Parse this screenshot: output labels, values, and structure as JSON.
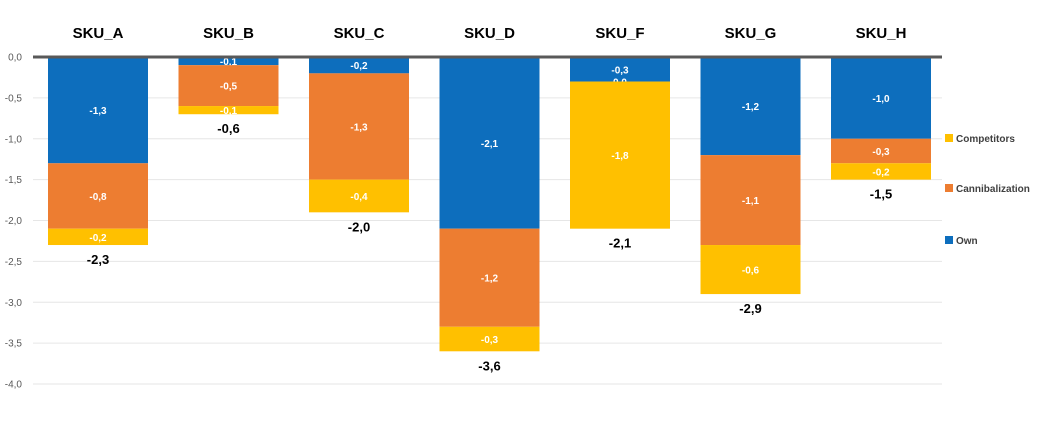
{
  "chart_data": {
    "type": "bar",
    "stacked": true,
    "categories": [
      "SKU_A",
      "SKU_B",
      "SKU_C",
      "SKU_D",
      "SKU_F",
      "SKU_G",
      "SKU_H"
    ],
    "series": [
      {
        "name": "Own",
        "color": "#0D6EBD",
        "values": [
          -1.3,
          -0.1,
          -0.2,
          -2.1,
          -0.3,
          -1.2,
          -1.0
        ],
        "labels": [
          "-1,3",
          "-0,1",
          "-0,2",
          "-2,1",
          "-0,3",
          "-1,2",
          "-1,0"
        ]
      },
      {
        "name": "Cannibalization",
        "color": "#ED7D31",
        "values": [
          -0.8,
          -0.5,
          -1.3,
          -1.2,
          0.0,
          -1.1,
          -0.3
        ],
        "labels": [
          "-0,8",
          "-0,5",
          "-1,3",
          "-1,2",
          "0,0",
          "-1,1",
          "-0,3"
        ]
      },
      {
        "name": "Competitors",
        "color": "#FFC000",
        "values": [
          -0.2,
          -0.1,
          -0.4,
          -0.3,
          -1.8,
          -0.6,
          -0.2
        ],
        "labels": [
          "-0,2",
          "-0,1",
          "-0,4",
          "-0,3",
          "-1,8",
          "-0,6",
          "-0,2"
        ]
      }
    ],
    "totals": [
      -2.3,
      -0.6,
      -2.0,
      -3.6,
      -2.1,
      -2.9,
      -1.5
    ],
    "total_labels": [
      "-2,3",
      "-0,6",
      "-2,0",
      "-3,6",
      "-2,1",
      "-2,9",
      "-1,5"
    ],
    "ylim": [
      -4.0,
      0.0
    ],
    "yticks": [
      0.0,
      -0.5,
      -1.0,
      -1.5,
      -2.0,
      -2.5,
      -3.0,
      -3.5,
      -4.0
    ],
    "ytick_labels": [
      "0,0",
      "-0,5",
      "-1,0",
      "-1,5",
      "-2,0",
      "-2,5",
      "-3,0",
      "-3,5",
      "-4,0"
    ],
    "legend": {
      "position": "right",
      "order": [
        "Competitors",
        "Cannibalization",
        "Own"
      ]
    },
    "grid": true,
    "title": "",
    "xlabel": "",
    "ylabel": ""
  }
}
